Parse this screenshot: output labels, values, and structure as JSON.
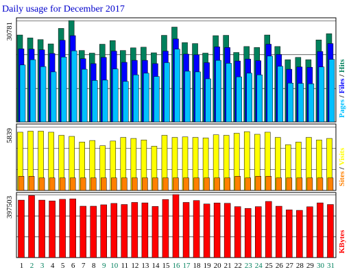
{
  "title": "Daily usage for December 2017",
  "colors": {
    "background": "#ffffff",
    "frame": "#000000",
    "title": "#0000cc",
    "hits": "#00805c",
    "files": "#0000ff",
    "pages": "#00c0ff",
    "visits": "#ffff00",
    "sites": "#ff8000",
    "kbytes": "#ff0000",
    "weekday_label": "#000000",
    "weekend_label": "#00805c"
  },
  "chart_data": [
    {
      "type": "bar",
      "panel": "top",
      "categories": [
        "1",
        "2",
        "3",
        "4",
        "5",
        "6",
        "7",
        "8",
        "9",
        "10",
        "11",
        "12",
        "13",
        "14",
        "15",
        "16",
        "17",
        "18",
        "19",
        "20",
        "21",
        "22",
        "23",
        "24",
        "25",
        "26",
        "27",
        "28",
        "29",
        "30",
        "31"
      ],
      "weekend_days": [
        "2",
        "3",
        "9",
        "10",
        "16",
        "17",
        "23",
        "24",
        "30",
        "31"
      ],
      "y_tick_label": "30781",
      "ylim": [
        0,
        30781
      ],
      "grid": true,
      "series": [
        {
          "name": "Hits",
          "values": [
            26400,
            25500,
            25000,
            23700,
            28400,
            30781,
            21700,
            20900,
            23600,
            24700,
            21700,
            22500,
            22700,
            21000,
            26300,
            28800,
            24100,
            23800,
            20900,
            26200,
            26300,
            21100,
            22900,
            22600,
            26400,
            22900,
            18900,
            19600,
            18900,
            24900,
            26800
          ]
        },
        {
          "name": "Files",
          "values": [
            22200,
            22100,
            21900,
            20800,
            24800,
            26200,
            19200,
            17700,
            19600,
            21500,
            18100,
            18700,
            18700,
            17700,
            21500,
            25200,
            20600,
            20400,
            18000,
            22800,
            22600,
            18500,
            19100,
            18600,
            23600,
            20500,
            16000,
            16700,
            16600,
            21400,
            23800
          ]
        },
        {
          "name": "Pages",
          "values": [
            17300,
            18900,
            16800,
            15200,
            19700,
            21600,
            16000,
            12600,
            12700,
            16100,
            12300,
            14300,
            14800,
            13800,
            18000,
            22100,
            15400,
            15200,
            13100,
            18700,
            17800,
            13700,
            14800,
            14300,
            20000,
            16900,
            11800,
            11700,
            11600,
            16700,
            19000
          ]
        }
      ],
      "legend": [
        {
          "name": "Pages",
          "color": "#00c0ff"
        },
        {
          "name": "Files",
          "color": "#0000ff"
        },
        {
          "name": "Hits",
          "color": "#00805c"
        }
      ]
    },
    {
      "type": "bar",
      "panel": "middle",
      "categories": [
        "1",
        "2",
        "3",
        "4",
        "5",
        "6",
        "7",
        "8",
        "9",
        "10",
        "11",
        "12",
        "13",
        "14",
        "15",
        "16",
        "17",
        "18",
        "19",
        "20",
        "21",
        "22",
        "23",
        "24",
        "25",
        "26",
        "27",
        "28",
        "29",
        "30",
        "31"
      ],
      "y_tick_label": "5839",
      "ylim": [
        0,
        5839
      ],
      "grid": true,
      "series": [
        {
          "name": "Visits",
          "values": [
            5339,
            5434,
            5434,
            5339,
            5053,
            4958,
            4434,
            4577,
            4101,
            4529,
            4862,
            4767,
            4624,
            4053,
            5053,
            4862,
            4910,
            4862,
            4815,
            5101,
            5053,
            5244,
            5387,
            5149,
            5339,
            4862,
            4196,
            4434,
            4862,
            4624,
            4767
          ]
        },
        {
          "name": "Sites",
          "values": [
            1300,
            1300,
            1150,
            1150,
            1150,
            1150,
            1150,
            1150,
            1150,
            1150,
            1150,
            1150,
            1150,
            1150,
            1150,
            1150,
            1150,
            1150,
            1150,
            1150,
            1150,
            1300,
            1150,
            1300,
            1300,
            1150,
            1150,
            1150,
            1150,
            1150,
            1150
          ]
        }
      ],
      "legend": [
        {
          "name": "Sites",
          "color": "#ff8000"
        },
        {
          "name": "Visits",
          "color": "#ffff00"
        }
      ]
    },
    {
      "type": "bar",
      "panel": "bottom",
      "categories": [
        "1",
        "2",
        "3",
        "4",
        "5",
        "6",
        "7",
        "8",
        "9",
        "10",
        "11",
        "12",
        "13",
        "14",
        "15",
        "16",
        "17",
        "18",
        "19",
        "20",
        "21",
        "22",
        "23",
        "24",
        "25",
        "26",
        "27",
        "28",
        "29",
        "30",
        "31"
      ],
      "y_tick_label": "397503",
      "ylim": [
        0,
        397503
      ],
      "grid": true,
      "series": [
        {
          "name": "KBytes",
          "values": [
            362500,
            391300,
            362500,
            357300,
            367700,
            370300,
            324100,
            324100,
            332900,
            341700,
            334800,
            348000,
            345100,
            322500,
            366600,
            397503,
            348000,
            360000,
            338200,
            344600,
            342400,
            321400,
            310300,
            321400,
            354200,
            323900,
            300900,
            298000,
            320500,
            345100,
            334800
          ]
        }
      ],
      "legend": [
        {
          "name": "KBytes",
          "color": "#ff0000"
        }
      ]
    }
  ]
}
